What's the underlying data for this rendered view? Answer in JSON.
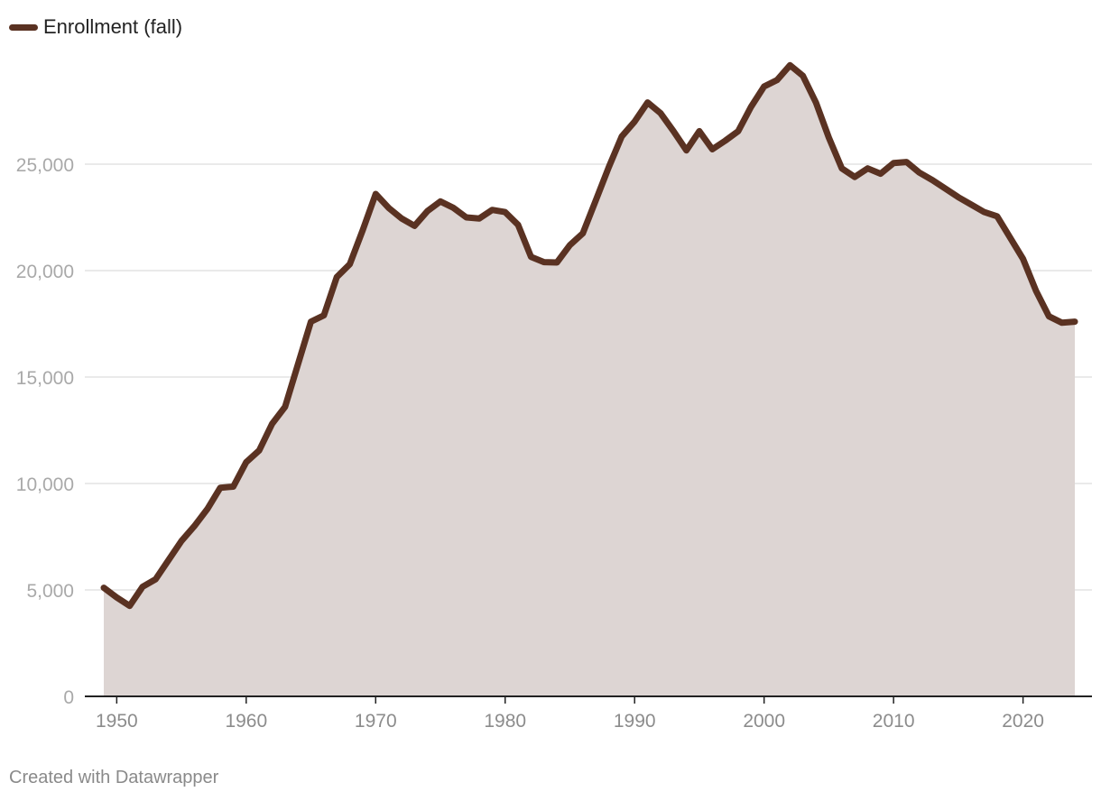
{
  "chart_data": {
    "type": "area",
    "title": "",
    "xlabel": "",
    "ylabel": "",
    "series": [
      {
        "name": "Enrollment (fall)",
        "color": "#5a3222",
        "fill": "#ddd5d3",
        "x": [
          1949,
          1950,
          1951,
          1952,
          1953,
          1954,
          1955,
          1956,
          1957,
          1958,
          1959,
          1960,
          1961,
          1962,
          1963,
          1964,
          1965,
          1966,
          1967,
          1968,
          1969,
          1970,
          1971,
          1972,
          1973,
          1974,
          1975,
          1976,
          1977,
          1978,
          1979,
          1980,
          1981,
          1982,
          1983,
          1984,
          1985,
          1986,
          1987,
          1988,
          1989,
          1990,
          1991,
          1992,
          1993,
          1994,
          1995,
          1996,
          1997,
          1998,
          1999,
          2000,
          2001,
          2002,
          2003,
          2004,
          2005,
          2006,
          2007,
          2008,
          2009,
          2010,
          2011,
          2012,
          2013,
          2014,
          2015,
          2016,
          2017,
          2018,
          2019,
          2020,
          2021,
          2022,
          2023,
          2024
        ],
        "values": [
          5100,
          4650,
          4250,
          5150,
          5500,
          6400,
          7300,
          8000,
          8800,
          9800,
          9850,
          11000,
          11550,
          12800,
          13600,
          15600,
          17600,
          17900,
          19700,
          20300,
          21900,
          23600,
          22950,
          22450,
          22100,
          22800,
          23250,
          22950,
          22500,
          22450,
          22850,
          22750,
          22150,
          20650,
          20400,
          20380,
          21200,
          21750,
          23300,
          24850,
          26300,
          27000,
          27900,
          27400,
          26550,
          25650,
          26550,
          25700,
          26100,
          26550,
          27700,
          28650,
          28950,
          29650,
          29150,
          27900,
          26250,
          24800,
          24400,
          24800,
          24550,
          25050,
          25100,
          24600,
          24250,
          23850,
          23450,
          23100,
          22750,
          22550,
          21550,
          20550,
          19050,
          17850,
          17550,
          17600
        ]
      }
    ],
    "xlim": [
      1949,
      2024
    ],
    "ylim": [
      0,
      30000
    ],
    "x_ticks": [
      1950,
      1960,
      1970,
      1980,
      1990,
      2000,
      2010,
      2020
    ],
    "x_tick_labels": [
      "1950",
      "1960",
      "1970",
      "1980",
      "1990",
      "2000",
      "2010",
      "2020"
    ],
    "y_ticks": [
      0,
      5000,
      10000,
      15000,
      20000,
      25000
    ],
    "y_tick_labels": [
      "0",
      "5,000",
      "10,000",
      "15,000",
      "20,000",
      "25,000"
    ],
    "grid": true,
    "legend_position": "top-left"
  },
  "credit": "Created with Datawrapper"
}
